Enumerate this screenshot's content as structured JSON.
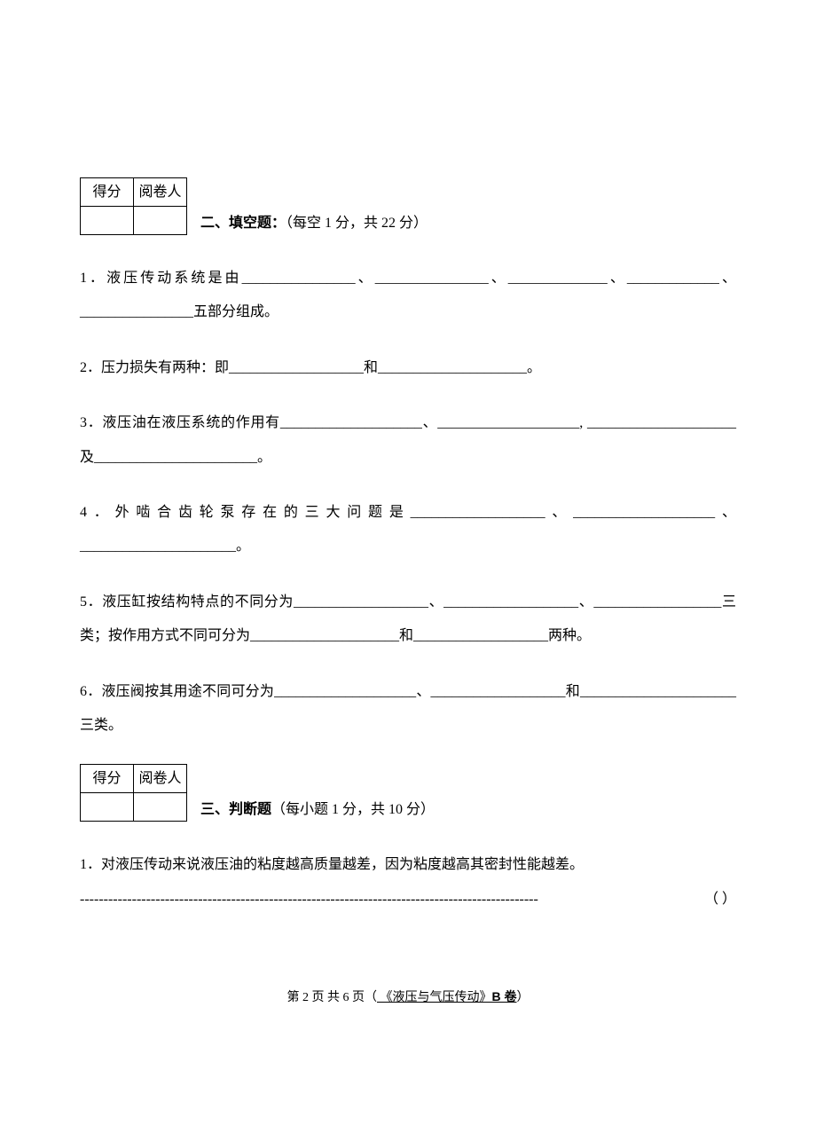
{
  "scoreTable": {
    "header1": "得分",
    "header2": "阅卷人"
  },
  "section2": {
    "label": "二、填空题：",
    "scoring": "（每空  1 分，共 22 分）"
  },
  "section3": {
    "label": "三、判断题",
    "scoring": "（每小题 1 分，共 10 分）"
  },
  "fill": {
    "q1": {
      "num": "1．",
      "text": "液压传动系统是由________________、________________、______________、_____________、________________五部分组成。"
    },
    "q2": {
      "num": "2．",
      "text": "压力损失有两种：即___________________和_____________________。"
    },
    "q3": {
      "num": "3．",
      "text": "液压油在液压系统的作用有____________________、____________________, _____________________及_______________________。"
    },
    "q4": {
      "num": "4．",
      "text": "外啮合齿轮泵存在的三大问题是___________________、____________________、______________________。"
    },
    "q5": {
      "num": "5．",
      "text": "液压缸按结构特点的不同分为___________________、___________________、__________________三类；按作用方式不同可分为_____________________和___________________两种。"
    },
    "q6": {
      "num": "6．",
      "text": "液压阀按其用途不同可分为____________________、___________________和______________________三类。"
    }
  },
  "tf": {
    "q1": {
      "num": "1．",
      "text": "对液压传动来说液压油的粘度越高质量越差，因为粘度越高其密封性能越差。",
      "dashes": "-------------------------------------------------------------------------------------------------",
      "paren": "（        ）"
    }
  },
  "footer": {
    "pageText": "第 2 页 共 6 页（",
    "courseName": "  《液压与气压传动》",
    "paperCode": "B 卷",
    "closeParen": "）"
  }
}
